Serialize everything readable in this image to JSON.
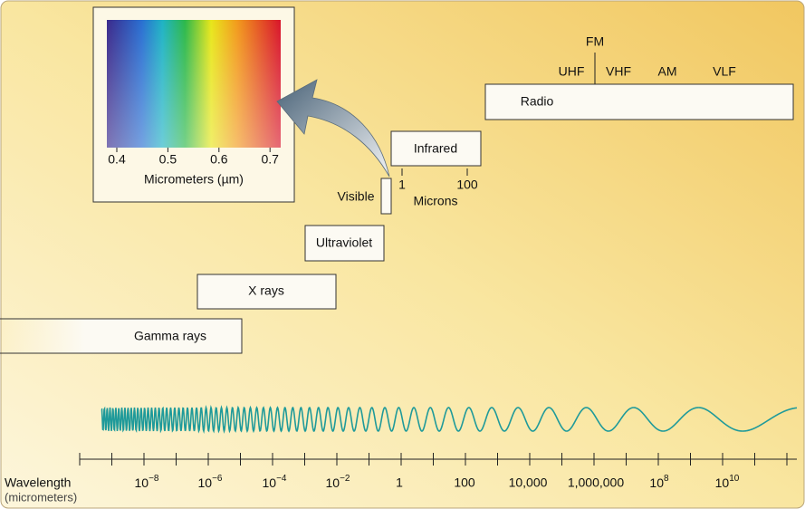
{
  "inset": {
    "ticks": [
      "0.4",
      "0.5",
      "0.6",
      "0.7"
    ],
    "axis_label": "Micrometers (µm)"
  },
  "bands": {
    "radio": "Radio",
    "infrared": "Infrared",
    "visible": "Visible",
    "ultraviolet": "Ultraviolet",
    "xrays": "X rays",
    "gamma": "Gamma rays"
  },
  "radio_sub": {
    "fm": "FM",
    "uhf": "UHF",
    "vhf": "VHF",
    "am": "AM",
    "vlf": "VLF"
  },
  "infrared_scale": {
    "ticks": [
      "1",
      "100"
    ],
    "unit": "Microns"
  },
  "axis": {
    "title": "Wavelength",
    "unit": "(micrometers)",
    "ticks": [
      {
        "base": "10",
        "exp": "−8"
      },
      {
        "base": "10",
        "exp": "−6"
      },
      {
        "base": "10",
        "exp": "−4"
      },
      {
        "base": "10",
        "exp": "−2"
      },
      {
        "label": "1"
      },
      {
        "label": "100"
      },
      {
        "label": "10,000"
      },
      {
        "label": "1,000,000"
      },
      {
        "base": "10",
        "exp": "8"
      },
      {
        "base": "10",
        "exp": "10"
      }
    ]
  }
}
